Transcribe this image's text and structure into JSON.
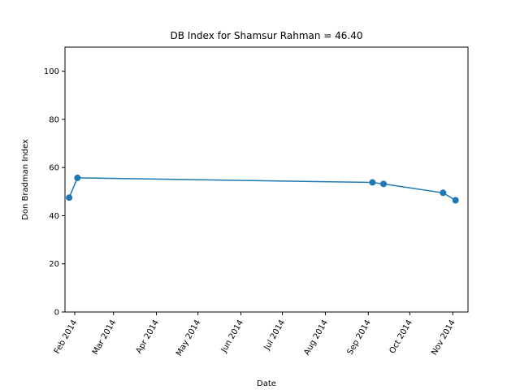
{
  "chart_data": {
    "type": "line",
    "title": "DB Index for Shamsur Rahman = 46.40",
    "xlabel": "Date",
    "ylabel": "Don Bradman Index",
    "ylim": [
      0,
      110
    ],
    "xlim": [
      "2014-01-25",
      "2014-11-12"
    ],
    "yticks": [
      0,
      20,
      40,
      60,
      80,
      100
    ],
    "xticks": [
      {
        "date": "2014-02-01",
        "label": "Feb 2014"
      },
      {
        "date": "2014-03-01",
        "label": "Mar 2014"
      },
      {
        "date": "2014-04-01",
        "label": "Apr 2014"
      },
      {
        "date": "2014-05-01",
        "label": "May 2014"
      },
      {
        "date": "2014-06-01",
        "label": "Jun 2014"
      },
      {
        "date": "2014-07-01",
        "label": "Jul 2014"
      },
      {
        "date": "2014-08-01",
        "label": "Aug 2014"
      },
      {
        "date": "2014-09-01",
        "label": "Sep 2014"
      },
      {
        "date": "2014-10-01",
        "label": "Oct 2014"
      },
      {
        "date": "2014-11-01",
        "label": "Nov 2014"
      }
    ],
    "grid": false,
    "legend": "none",
    "color": "#1f77b4",
    "series": [
      {
        "x": [
          "2014-01-28",
          "2014-02-03",
          "2014-09-04",
          "2014-09-12",
          "2014-10-25",
          "2014-11-03"
        ],
        "y": [
          47.5,
          55.7,
          53.8,
          53.2,
          49.5,
          46.4
        ]
      }
    ]
  }
}
